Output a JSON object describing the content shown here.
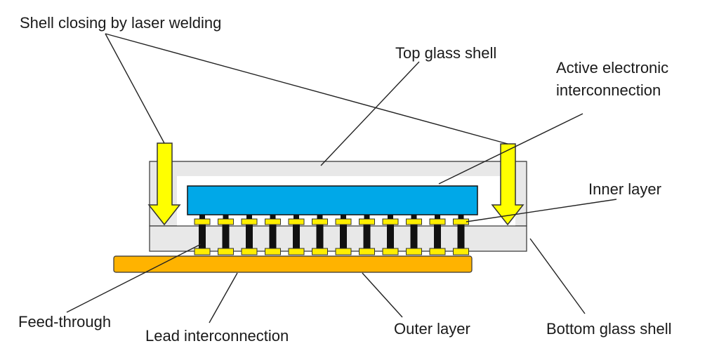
{
  "labels": {
    "shell_closing": "Shell closing by laser welding",
    "top_glass_shell": "Top glass shell",
    "active_line1": "Active electronic",
    "active_line2": "interconnection",
    "inner_layer": "Inner layer",
    "feed_through": "Feed-through",
    "lead_interconnection": "Lead interconnection",
    "outer_layer": "Outer layer",
    "bottom_glass_shell": "Bottom glass shell"
  },
  "colors": {
    "glass": "#e8e8e8",
    "chip": "#00a8e8",
    "pad": "#ffee00",
    "lead_plate": "#ffb300",
    "arrow": "#ffff00",
    "pin": "#111111"
  },
  "interconnect_count": 12
}
